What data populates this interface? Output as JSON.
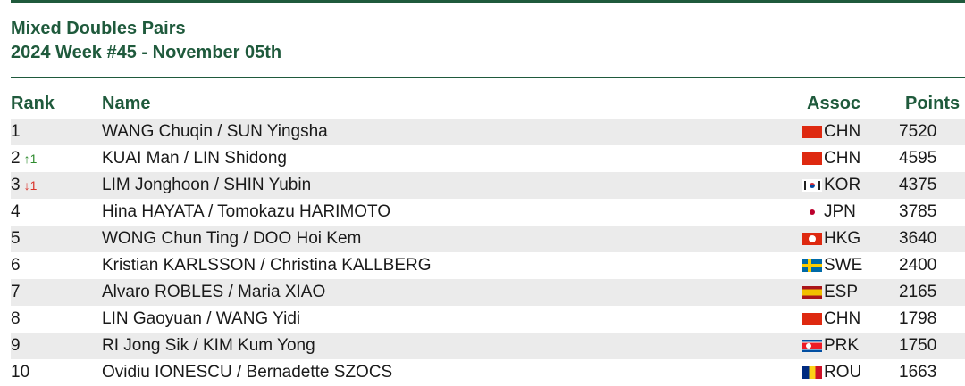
{
  "title_line1": "Mixed Doubles Pairs",
  "title_line2": "2024 Week #45 - November 05th",
  "headers": {
    "rank": "Rank",
    "name": "Name",
    "assoc": "Assoc",
    "points": "Points"
  },
  "rows": [
    {
      "rank": "1",
      "move": "",
      "move_dir": "",
      "name": "WANG Chuqin / SUN Yingsha",
      "flag": "chn",
      "assoc": "CHN",
      "points": "7520"
    },
    {
      "rank": "2",
      "move": "↑1",
      "move_dir": "up",
      "name": "KUAI Man / LIN Shidong",
      "flag": "chn",
      "assoc": "CHN",
      "points": "4595"
    },
    {
      "rank": "3",
      "move": "↓1",
      "move_dir": "down",
      "name": "LIM Jonghoon / SHIN Yubin",
      "flag": "kor",
      "assoc": "KOR",
      "points": "4375"
    },
    {
      "rank": "4",
      "move": "",
      "move_dir": "",
      "name": "Hina HAYATA / Tomokazu HARIMOTO",
      "flag": "jpn",
      "assoc": "JPN",
      "points": "3785"
    },
    {
      "rank": "5",
      "move": "",
      "move_dir": "",
      "name": "WONG Chun Ting / DOO Hoi Kem",
      "flag": "hkg",
      "assoc": "HKG",
      "points": "3640"
    },
    {
      "rank": "6",
      "move": "",
      "move_dir": "",
      "name": "Kristian KARLSSON / Christina KALLBERG",
      "flag": "swe",
      "assoc": "SWE",
      "points": "2400"
    },
    {
      "rank": "7",
      "move": "",
      "move_dir": "",
      "name": "Alvaro ROBLES / Maria XIAO",
      "flag": "esp",
      "assoc": "ESP",
      "points": "2165"
    },
    {
      "rank": "8",
      "move": "",
      "move_dir": "",
      "name": "LIN Gaoyuan / WANG Yidi",
      "flag": "chn",
      "assoc": "CHN",
      "points": "1798"
    },
    {
      "rank": "9",
      "move": "",
      "move_dir": "",
      "name": "RI Jong Sik / KIM Kum Yong",
      "flag": "prk",
      "assoc": "PRK",
      "points": "1750"
    },
    {
      "rank": "10",
      "move": "",
      "move_dir": "",
      "name": "Ovidiu IONESCU / Bernadette SZOCS",
      "flag": "rou",
      "assoc": "ROU",
      "points": "1663"
    }
  ]
}
